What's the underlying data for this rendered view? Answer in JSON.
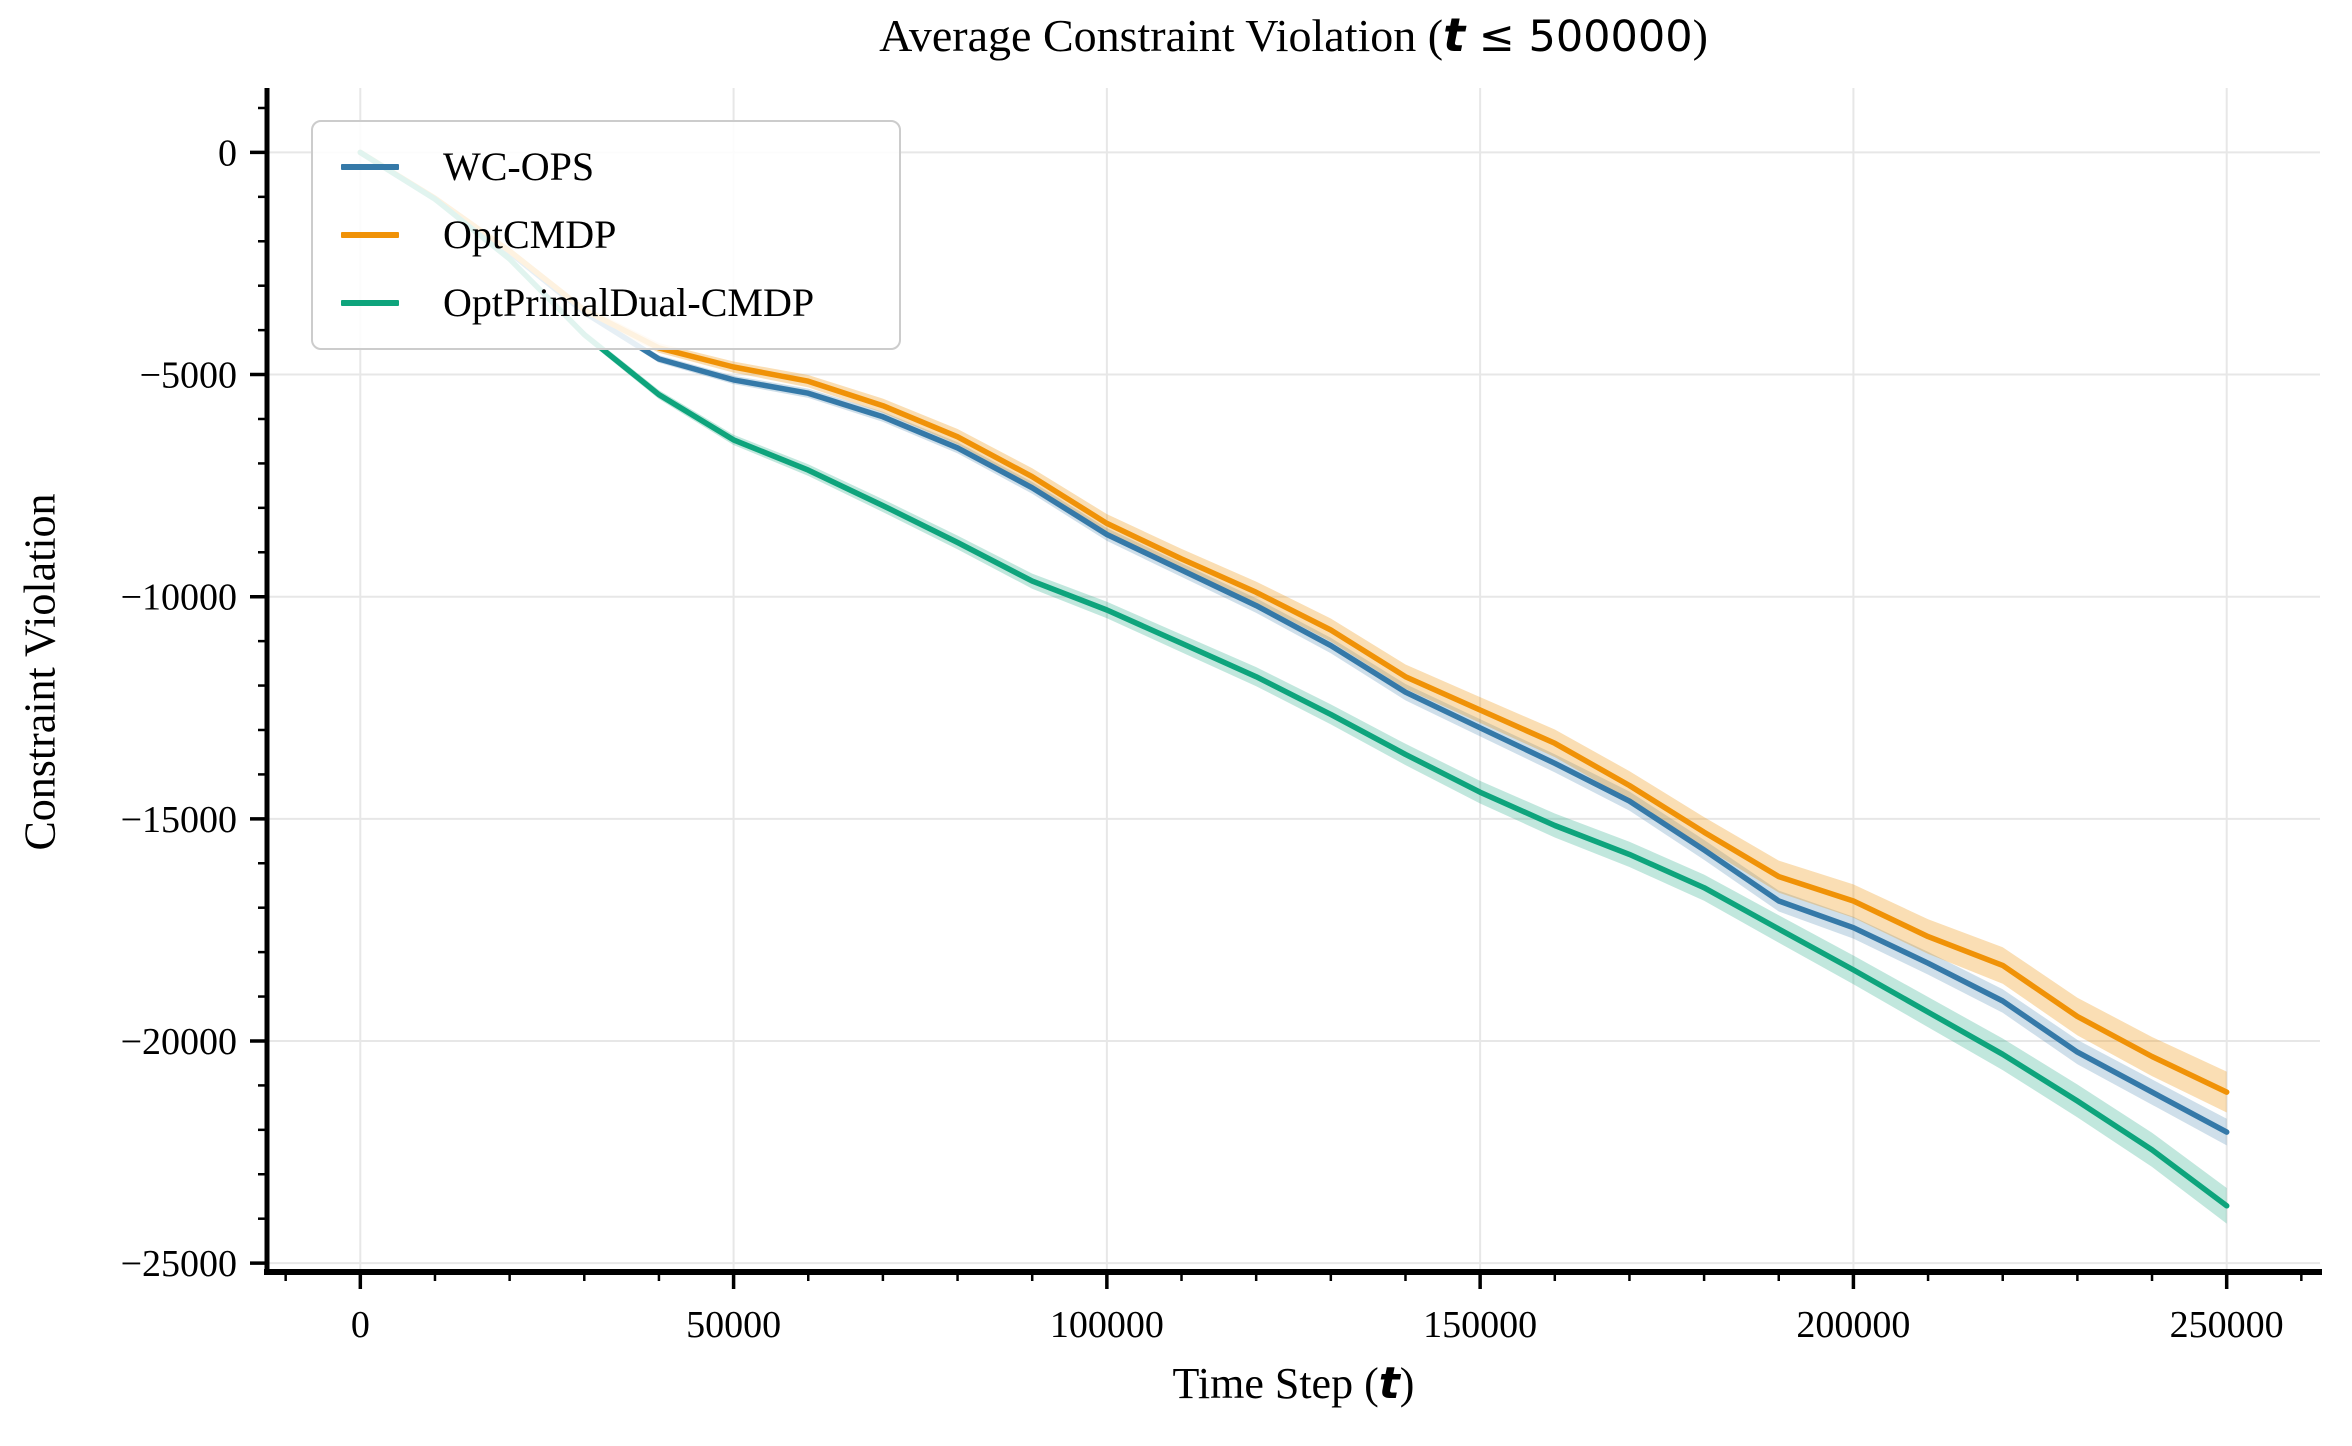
{
  "title": {
    "prefix": "Average Constraint Violation (",
    "var": "t",
    "condition": " ≤ 500000",
    "suffix": ")"
  },
  "axes": {
    "xlabel_prefix": "Time Step (",
    "xlabel_var": "t",
    "xlabel_suffix": ")",
    "ylabel": "Constraint Violation"
  },
  "legend": {
    "items": [
      {
        "label": "WC-OPS",
        "color": "#3579a8"
      },
      {
        "label": "OptCMDP",
        "color": "#f09207"
      },
      {
        "label": "OptPrimalDual-CMDP",
        "color": "#0ea47c"
      }
    ]
  },
  "chart_data": {
    "type": "line",
    "title": "Average Constraint Violation (t ≤ 500000)",
    "xlabel": "Time Step (t)",
    "ylabel": "Constraint Violation",
    "grid": true,
    "legend_position": "upper-left",
    "xlim": [
      -12500,
      262500
    ],
    "ylim": [
      -25200,
      1450
    ],
    "x_ticks": [
      0,
      50000,
      100000,
      150000,
      200000,
      250000
    ],
    "x_tick_labels": [
      "0",
      "50000",
      "100000",
      "150000",
      "200000",
      "250000"
    ],
    "y_ticks": [
      0,
      -5000,
      -10000,
      -15000,
      -20000,
      -25000
    ],
    "y_tick_labels": [
      "0",
      "−5000",
      "−10000",
      "−15000",
      "−20000",
      "−25000"
    ],
    "x_minor_step": 10000,
    "y_minor_step": 1000,
    "x": [
      0,
      10000,
      20000,
      30000,
      40000,
      50000,
      60000,
      70000,
      80000,
      90000,
      100000,
      110000,
      120000,
      130000,
      140000,
      150000,
      160000,
      170000,
      180000,
      190000,
      200000,
      210000,
      220000,
      230000,
      240000,
      250000
    ],
    "series": [
      {
        "name": "WC-OPS",
        "color": "#3579a8",
        "band_alpha": 0.24,
        "values": [
          0,
          -1050,
          -2250,
          -3600,
          -4650,
          -5120,
          -5420,
          -5950,
          -6650,
          -7550,
          -8600,
          -9400,
          -10200,
          -11100,
          -12150,
          -12950,
          -13750,
          -14600,
          -15700,
          -16850,
          -17450,
          -18250,
          -19100,
          -20250,
          -21150,
          -22050
        ],
        "band_halfwidth": [
          30,
          45,
          60,
          70,
          85,
          95,
          105,
          115,
          125,
          135,
          145,
          155,
          165,
          175,
          185,
          195,
          205,
          215,
          225,
          235,
          245,
          255,
          265,
          275,
          285,
          300
        ]
      },
      {
        "name": "OptCMDP",
        "color": "#f09207",
        "band_alpha": 0.3,
        "values": [
          0,
          -1030,
          -2220,
          -3550,
          -4400,
          -4830,
          -5150,
          -5700,
          -6400,
          -7300,
          -8350,
          -9150,
          -9900,
          -10750,
          -11800,
          -12550,
          -13300,
          -14250,
          -15300,
          -16300,
          -16850,
          -17650,
          -18300,
          -19450,
          -20350,
          -21150
        ],
        "band_halfwidth": [
          40,
          60,
          75,
          90,
          110,
          125,
          140,
          160,
          175,
          190,
          210,
          225,
          240,
          260,
          275,
          290,
          310,
          325,
          340,
          360,
          375,
          390,
          410,
          425,
          440,
          460
        ]
      },
      {
        "name": "OptPrimalDual-CMDP",
        "color": "#0ea47c",
        "band_alpha": 0.26,
        "values": [
          0,
          -1050,
          -2400,
          -4100,
          -5450,
          -6470,
          -7150,
          -7950,
          -8780,
          -9650,
          -10300,
          -11050,
          -11800,
          -12650,
          -13550,
          -14400,
          -15150,
          -15800,
          -16550,
          -17480,
          -18400,
          -19350,
          -20300,
          -21350,
          -22450,
          -23710
        ],
        "band_halfwidth": [
          40,
          55,
          70,
          85,
          100,
          115,
          130,
          145,
          155,
          170,
          185,
          200,
          215,
          225,
          240,
          255,
          270,
          285,
          295,
          310,
          325,
          340,
          355,
          370,
          385,
          400
        ]
      }
    ],
    "style": {
      "grid_color": "#e7e7e7",
      "spine_color": "#000000",
      "line_width": 5.5
    }
  }
}
